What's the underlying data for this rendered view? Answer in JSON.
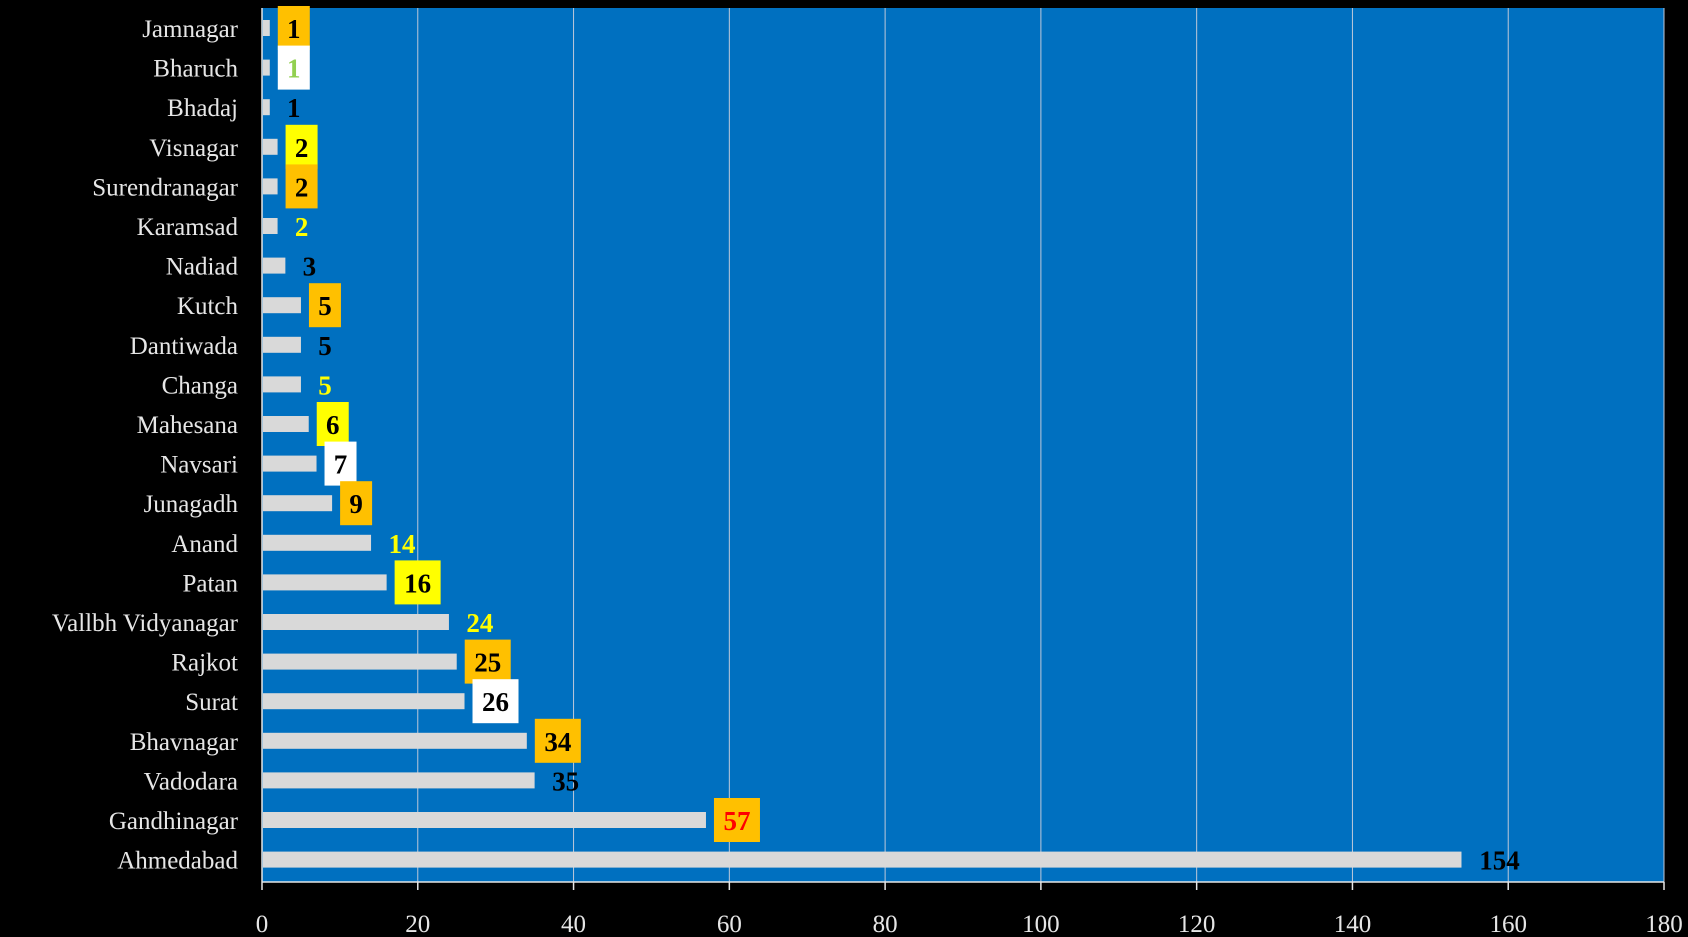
{
  "chart_data": {
    "type": "bar",
    "orientation": "horizontal",
    "categories": [
      "Jamnagar",
      "Bharuch",
      "Bhadaj",
      "Visnagar",
      "Surendranagar",
      "Karamsad",
      "Nadiad",
      "Kutch",
      "Dantiwada",
      "Changa",
      "Mahesana",
      "Navsari",
      "Junagadh",
      "Anand",
      "Patan",
      "Vallbh Vidyanagar",
      "Rajkot",
      "Surat",
      "Bhavnagar",
      "Vadodara",
      "Gandhinagar",
      "Ahmedabad"
    ],
    "values": [
      1,
      1,
      1,
      2,
      2,
      2,
      3,
      5,
      5,
      5,
      6,
      7,
      9,
      14,
      16,
      24,
      25,
      26,
      34,
      35,
      57,
      154
    ],
    "xlim": [
      0,
      180
    ],
    "xticks": [
      0,
      20,
      40,
      60,
      80,
      100,
      120,
      140,
      160,
      180
    ],
    "grid": true,
    "colors": {
      "plot_background": "#0070C0",
      "page_background": "#000000",
      "bar": "#D9D9D9",
      "gridline": "#BFC9D9",
      "axis_text": "#E6E6E6"
    },
    "data_labels": [
      {
        "text": "1",
        "color": "#000000",
        "box": "#FFC000"
      },
      {
        "text": "1",
        "color": "#92D050",
        "box": "#FFFFFF"
      },
      {
        "text": "1",
        "color": "#000000",
        "box": null
      },
      {
        "text": "2",
        "color": "#000000",
        "box": "#FFFF00"
      },
      {
        "text": "2",
        "color": "#000000",
        "box": "#FFC000"
      },
      {
        "text": "2",
        "color": "#FFFF00",
        "box": null
      },
      {
        "text": "3",
        "color": "#000000",
        "box": null
      },
      {
        "text": "5",
        "color": "#000000",
        "box": "#FFC000"
      },
      {
        "text": "5",
        "color": "#000000",
        "box": null
      },
      {
        "text": "5",
        "color": "#FFFF00",
        "box": null
      },
      {
        "text": "6",
        "color": "#000000",
        "box": "#FFFF00"
      },
      {
        "text": "7",
        "color": "#000000",
        "box": "#FFFFFF"
      },
      {
        "text": "9",
        "color": "#000000",
        "box": "#FFC000"
      },
      {
        "text": "14",
        "color": "#FFFF00",
        "box": null
      },
      {
        "text": "16",
        "color": "#000000",
        "box": "#FFFF00"
      },
      {
        "text": "24",
        "color": "#FFFF00",
        "box": null
      },
      {
        "text": "25",
        "color": "#000000",
        "box": "#FFC000"
      },
      {
        "text": "26",
        "color": "#000000",
        "box": "#FFFFFF"
      },
      {
        "text": "34",
        "color": "#000000",
        "box": "#FFC000"
      },
      {
        "text": "35",
        "color": "#000000",
        "box": null
      },
      {
        "text": "57",
        "color": "#FF0000",
        "box": "#FFC000"
      },
      {
        "text": "154",
        "color": "#000000",
        "box": null
      }
    ]
  }
}
